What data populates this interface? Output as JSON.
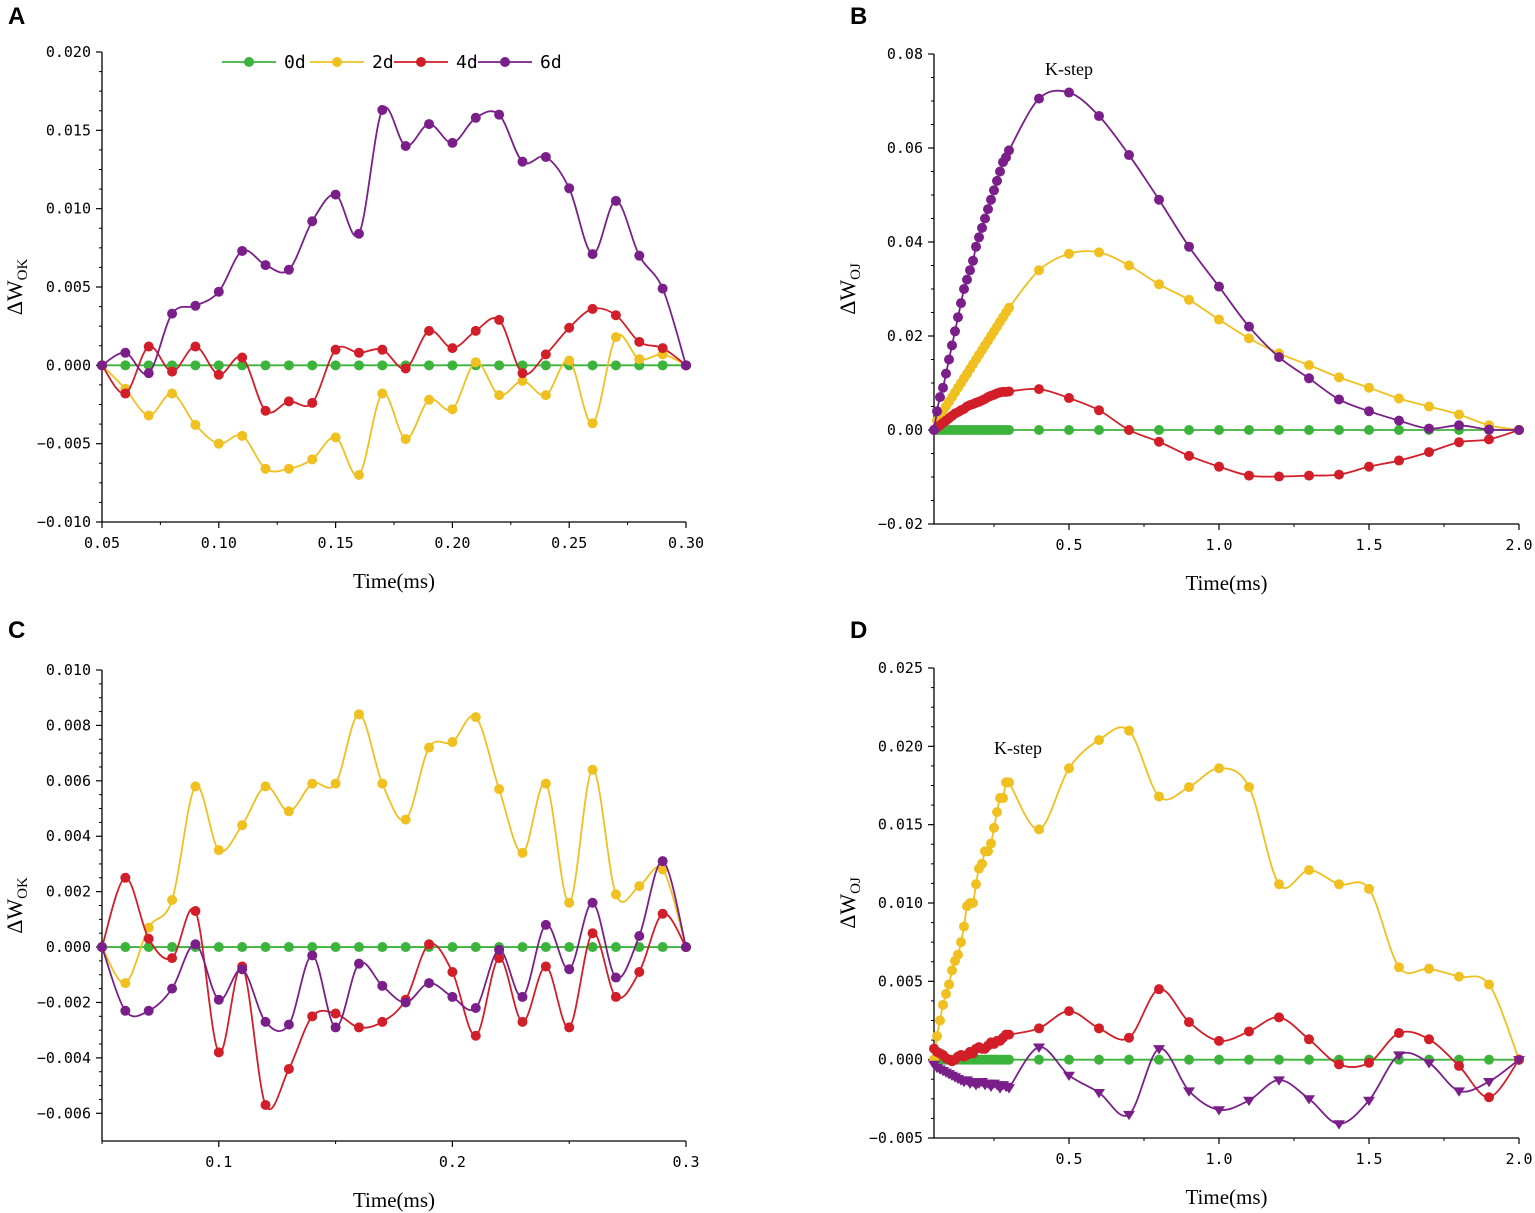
{
  "colors": {
    "d0": "#3cb43c",
    "d2": "#f0c020",
    "d4": "#d21e28",
    "d6": "#7a1f8a"
  },
  "legend": {
    "d0": "0d",
    "d2": "2d",
    "d4": "4d",
    "d6": "6d"
  },
  "chart_data": [
    {
      "panel": "A",
      "type": "line",
      "xlabel": "Time(ms)",
      "ylabel_main": "ΔW",
      "ylabel_sub": "OK",
      "xlim": [
        0.05,
        0.3
      ],
      "ylim": [
        -0.01,
        0.02
      ],
      "xticks": [
        {
          "v": 0.05,
          "label": "0.05"
        },
        {
          "v": 0.1,
          "label": "0.10"
        },
        {
          "v": 0.15,
          "label": "0.15"
        },
        {
          "v": 0.2,
          "label": "0.20"
        },
        {
          "v": 0.25,
          "label": "0.25"
        },
        {
          "v": 0.3,
          "label": "0.30"
        }
      ],
      "yticks": [
        {
          "v": -0.01,
          "label": "−0.010"
        },
        {
          "v": -0.005,
          "label": "−0.005"
        },
        {
          "v": 0.0,
          "label": "0.000"
        },
        {
          "v": 0.005,
          "label": "0.005"
        },
        {
          "v": 0.01,
          "label": "0.010"
        },
        {
          "v": 0.015,
          "label": "0.015"
        },
        {
          "v": 0.02,
          "label": "0.020"
        }
      ],
      "x": [
        0.05,
        0.06,
        0.07,
        0.08,
        0.09,
        0.1,
        0.11,
        0.12,
        0.13,
        0.14,
        0.15,
        0.16,
        0.17,
        0.18,
        0.19,
        0.2,
        0.21,
        0.22,
        0.23,
        0.24,
        0.25,
        0.26,
        0.27,
        0.28,
        0.29,
        0.3
      ],
      "series": [
        {
          "name": "0d",
          "key": "d0",
          "marker": "circle",
          "values": [
            0,
            0,
            0,
            0,
            0,
            0,
            0,
            0,
            0,
            0,
            0,
            0,
            0,
            0,
            0,
            0,
            0,
            0,
            0,
            0,
            0,
            0,
            0,
            0,
            0,
            0
          ]
        },
        {
          "name": "2d",
          "key": "d2",
          "marker": "circle",
          "values": [
            0,
            -0.0015,
            -0.0032,
            -0.0018,
            -0.0038,
            -0.005,
            -0.0045,
            -0.0066,
            -0.0066,
            -0.006,
            -0.0046,
            -0.007,
            -0.0018,
            -0.0047,
            -0.0022,
            -0.0028,
            0.0002,
            -0.0019,
            -0.001,
            -0.0019,
            0.0003,
            -0.0037,
            0.0018,
            0.0004,
            0.0007,
            0
          ]
        },
        {
          "name": "4d",
          "key": "d4",
          "marker": "circle",
          "values": [
            0,
            -0.0018,
            0.0012,
            -0.0004,
            0.0012,
            -0.0006,
            0.0005,
            -0.0029,
            -0.0023,
            -0.0024,
            0.001,
            0.0008,
            0.001,
            -0.0002,
            0.0022,
            0.0011,
            0.0022,
            0.0029,
            -0.0005,
            0.0007,
            0.0024,
            0.0036,
            0.0032,
            0.0015,
            0.0011,
            0
          ]
        },
        {
          "name": "6d",
          "key": "d6",
          "marker": "circle",
          "values": [
            0,
            0.0008,
            -0.0005,
            0.0033,
            0.0038,
            0.0047,
            0.0073,
            0.0064,
            0.0061,
            0.0092,
            0.0109,
            0.0084,
            0.0163,
            0.014,
            0.0154,
            0.0142,
            0.0158,
            0.016,
            0.013,
            0.0133,
            0.0113,
            0.0071,
            0.0105,
            0.007,
            0.0049,
            0
          ]
        }
      ]
    },
    {
      "panel": "B",
      "type": "line",
      "xlabel": "Time(ms)",
      "ylabel_main": "ΔW",
      "ylabel_sub": "OJ",
      "xlim": [
        0.05,
        2.0
      ],
      "ylim": [
        -0.02,
        0.08
      ],
      "annotation": {
        "text": "K-step",
        "x": 0.5,
        "y": 0.0755
      },
      "xticks": [
        {
          "v": 0.5,
          "label": "0.5"
        },
        {
          "v": 1.0,
          "label": "1.0"
        },
        {
          "v": 1.5,
          "label": "1.5"
        },
        {
          "v": 2.0,
          "label": "2.0"
        }
      ],
      "yticks": [
        {
          "v": -0.02,
          "label": "−0.02"
        },
        {
          "v": 0.0,
          "label": "0.00"
        },
        {
          "v": 0.02,
          "label": "0.02"
        },
        {
          "v": 0.04,
          "label": "0.04"
        },
        {
          "v": 0.06,
          "label": "0.06"
        },
        {
          "v": 0.08,
          "label": "0.08"
        }
      ],
      "x": [
        0.05,
        0.06,
        0.07,
        0.08,
        0.09,
        0.1,
        0.11,
        0.12,
        0.13,
        0.14,
        0.15,
        0.16,
        0.17,
        0.18,
        0.19,
        0.2,
        0.21,
        0.22,
        0.23,
        0.24,
        0.25,
        0.26,
        0.27,
        0.28,
        0.29,
        0.3,
        0.4,
        0.5,
        0.6,
        0.7,
        0.8,
        0.9,
        1.0,
        1.1,
        1.2,
        1.3,
        1.4,
        1.5,
        1.6,
        1.7,
        1.8,
        1.9,
        2.0
      ],
      "series": [
        {
          "name": "0d",
          "key": "d0",
          "marker": "circle",
          "values": [
            0,
            0,
            0,
            0,
            0,
            0,
            0,
            0,
            0,
            0,
            0,
            0,
            0,
            0,
            0,
            0,
            0,
            0,
            0,
            0,
            0,
            0,
            0,
            0,
            0,
            0,
            0,
            0,
            0,
            0,
            0,
            0,
            0,
            0,
            0,
            0,
            0,
            0,
            0,
            0,
            0,
            0,
            0
          ]
        },
        {
          "name": "2d",
          "key": "d2",
          "marker": "circle",
          "values": [
            0,
            0.002,
            0.003,
            0.004,
            0.005,
            0.006,
            0.007,
            0.008,
            0.009,
            0.01,
            0.011,
            0.012,
            0.013,
            0.014,
            0.015,
            0.016,
            0.017,
            0.018,
            0.019,
            0.02,
            0.021,
            0.022,
            0.023,
            0.024,
            0.025,
            0.026,
            0.034,
            0.0375,
            0.0378,
            0.035,
            0.031,
            0.0277,
            0.0235,
            0.0195,
            0.0163,
            0.0138,
            0.0112,
            0.009,
            0.0067,
            0.005,
            0.0033,
            0.001,
            0
          ]
        },
        {
          "name": "4d",
          "key": "d4",
          "marker": "circle",
          "values": [
            0,
            0.0005,
            0.001,
            0.0015,
            0.002,
            0.0025,
            0.003,
            0.0035,
            0.0038,
            0.0042,
            0.0045,
            0.005,
            0.0053,
            0.0055,
            0.0058,
            0.006,
            0.0063,
            0.0066,
            0.007,
            0.0073,
            0.0075,
            0.0078,
            0.008,
            0.0081,
            0.0081,
            0.0082,
            0.0087,
            0.0068,
            0.0042,
            0,
            -0.0025,
            -0.0055,
            -0.0078,
            -0.0097,
            -0.0099,
            -0.0097,
            -0.0095,
            -0.0078,
            -0.0065,
            -0.0047,
            -0.0026,
            -0.002,
            0
          ]
        },
        {
          "name": "6d",
          "key": "d6",
          "marker": "circle",
          "values": [
            0,
            0.004,
            0.007,
            0.009,
            0.012,
            0.015,
            0.018,
            0.021,
            0.024,
            0.027,
            0.03,
            0.032,
            0.034,
            0.036,
            0.039,
            0.041,
            0.043,
            0.045,
            0.047,
            0.049,
            0.051,
            0.053,
            0.055,
            0.057,
            0.058,
            0.0595,
            0.0705,
            0.0718,
            0.0668,
            0.0585,
            0.049,
            0.039,
            0.0305,
            0.022,
            0.0155,
            0.011,
            0.0065,
            0.004,
            0.002,
            0.0003,
            0.001,
            0.0001,
            0
          ]
        }
      ]
    },
    {
      "panel": "C",
      "type": "line",
      "xlabel": "Time(ms)",
      "ylabel_main": "ΔW",
      "ylabel_sub": "OK",
      "xlim": [
        0.05,
        0.3
      ],
      "ylim": [
        -0.007,
        0.01
      ],
      "xticks": [
        {
          "v": 0.1,
          "label": "0.1"
        },
        {
          "v": 0.2,
          "label": "0.2"
        },
        {
          "v": 0.3,
          "label": "0.3"
        }
      ],
      "yticks": [
        {
          "v": -0.006,
          "label": "−0.006"
        },
        {
          "v": -0.004,
          "label": "−0.004"
        },
        {
          "v": -0.002,
          "label": "−0.002"
        },
        {
          "v": 0.0,
          "label": "0.000"
        },
        {
          "v": 0.002,
          "label": "0.002"
        },
        {
          "v": 0.004,
          "label": "0.004"
        },
        {
          "v": 0.006,
          "label": "0.006"
        },
        {
          "v": 0.008,
          "label": "0.008"
        },
        {
          "v": 0.01,
          "label": "0.010"
        }
      ],
      "x": [
        0.05,
        0.06,
        0.07,
        0.08,
        0.09,
        0.1,
        0.11,
        0.12,
        0.13,
        0.14,
        0.15,
        0.16,
        0.17,
        0.18,
        0.19,
        0.2,
        0.21,
        0.22,
        0.23,
        0.24,
        0.25,
        0.26,
        0.27,
        0.28,
        0.29,
        0.3
      ],
      "series": [
        {
          "name": "0d",
          "key": "d0",
          "marker": "circle",
          "values": [
            0,
            0,
            0,
            0,
            0,
            0,
            0,
            0,
            0,
            0,
            0,
            0,
            0,
            0,
            0,
            0,
            0,
            0,
            0,
            0,
            0,
            0,
            0,
            0,
            0,
            0
          ]
        },
        {
          "name": "2d",
          "key": "d2",
          "marker": "circle",
          "values": [
            0,
            -0.0013,
            0.0007,
            0.0017,
            0.0058,
            0.0035,
            0.0044,
            0.0058,
            0.0049,
            0.0059,
            0.0059,
            0.0084,
            0.0059,
            0.0046,
            0.0072,
            0.0074,
            0.0083,
            0.0057,
            0.0034,
            0.0059,
            0.0016,
            0.0064,
            0.0019,
            0.0022,
            0.0028,
            0
          ]
        },
        {
          "name": "4d",
          "key": "d4",
          "marker": "circle",
          "values": [
            0,
            0.0025,
            0.0003,
            -0.0004,
            0.0013,
            -0.0038,
            -0.0007,
            -0.0057,
            -0.0044,
            -0.0025,
            -0.0024,
            -0.0029,
            -0.0027,
            -0.0019,
            0.0001,
            -0.0009,
            -0.0032,
            -0.0004,
            -0.0027,
            -0.0007,
            -0.0029,
            0.0005,
            -0.0018,
            -0.0009,
            0.0012,
            0
          ]
        },
        {
          "name": "6d",
          "key": "d6",
          "marker": "circle",
          "values": [
            0,
            -0.0023,
            -0.0023,
            -0.0015,
            0.0001,
            -0.0019,
            -0.0008,
            -0.0027,
            -0.0028,
            -0.0003,
            -0.0029,
            -0.0006,
            -0.0014,
            -0.002,
            -0.0013,
            -0.0018,
            -0.0022,
            -0.0001,
            -0.0018,
            0.0008,
            -0.0008,
            0.0016,
            -0.0011,
            0.0004,
            0.0031,
            0
          ]
        }
      ]
    },
    {
      "panel": "D",
      "type": "line",
      "xlabel": "Time(ms)",
      "ylabel_main": "ΔW",
      "ylabel_sub": "OJ",
      "xlim": [
        0.05,
        2.0
      ],
      "ylim": [
        -0.005,
        0.025
      ],
      "annotation": {
        "text": "K-step",
        "x": 0.33,
        "y": 0.0195
      },
      "xticks": [
        {
          "v": 0.5,
          "label": "0.5"
        },
        {
          "v": 1.0,
          "label": "1.0"
        },
        {
          "v": 1.5,
          "label": "1.5"
        },
        {
          "v": 2.0,
          "label": "2.0"
        }
      ],
      "yticks": [
        {
          "v": -0.005,
          "label": "−0.005"
        },
        {
          "v": 0.0,
          "label": "0.000"
        },
        {
          "v": 0.005,
          "label": "0.005"
        },
        {
          "v": 0.01,
          "label": "0.010"
        },
        {
          "v": 0.015,
          "label": "0.015"
        },
        {
          "v": 0.02,
          "label": "0.020"
        },
        {
          "v": 0.025,
          "label": "0.025"
        }
      ],
      "x": [
        0.05,
        0.06,
        0.07,
        0.08,
        0.09,
        0.1,
        0.11,
        0.12,
        0.13,
        0.14,
        0.15,
        0.16,
        0.17,
        0.18,
        0.19,
        0.2,
        0.21,
        0.22,
        0.23,
        0.24,
        0.25,
        0.26,
        0.27,
        0.28,
        0.29,
        0.3,
        0.4,
        0.5,
        0.6,
        0.7,
        0.8,
        0.9,
        1.0,
        1.1,
        1.2,
        1.3,
        1.4,
        1.5,
        1.6,
        1.7,
        1.8,
        1.9,
        2.0
      ],
      "series": [
        {
          "name": "0d",
          "key": "d0",
          "marker": "circle",
          "values": [
            0,
            0,
            0,
            0,
            0,
            0,
            0,
            0,
            0,
            0,
            0,
            0,
            0,
            0,
            0,
            0,
            0,
            0,
            0,
            0,
            0,
            0,
            0,
            0,
            0,
            0,
            0,
            0,
            0,
            0,
            0,
            0,
            0,
            0,
            0,
            0,
            0,
            0,
            0,
            0,
            0,
            0,
            0
          ]
        },
        {
          "name": "2d",
          "key": "d2",
          "marker": "circle",
          "values": [
            0,
            0.0015,
            0.0025,
            0.0035,
            0.0042,
            0.0048,
            0.0057,
            0.0063,
            0.0067,
            0.0075,
            0.0085,
            0.0098,
            0.01,
            0.01,
            0.0112,
            0.0122,
            0.0125,
            0.0133,
            0.0133,
            0.0138,
            0.0148,
            0.0158,
            0.0167,
            0.0167,
            0.0177,
            0.0177,
            0.0147,
            0.0186,
            0.0204,
            0.021,
            0.0168,
            0.0174,
            0.0186,
            0.0174,
            0.0112,
            0.0121,
            0.0112,
            0.0109,
            0.0059,
            0.0058,
            0.0053,
            0.0048,
            0
          ]
        },
        {
          "name": "4d",
          "key": "d4",
          "marker": "circle",
          "values": [
            0.0007,
            0.0005,
            0.0004,
            0.0003,
            0.0001,
            0,
            -0.0001,
            0,
            0.0002,
            0.0003,
            0.0002,
            0.0003,
            0.0005,
            0.0004,
            0.0007,
            0.0008,
            0.0007,
            0.0007,
            0.0009,
            0.0011,
            0.001,
            0.0012,
            0.0012,
            0.0014,
            0.0016,
            0.0016,
            0.002,
            0.0031,
            0.002,
            0.0014,
            0.0045,
            0.0024,
            0.0012,
            0.0018,
            0.0027,
            0.0013,
            -0.0003,
            -0.0002,
            0.0017,
            0.0013,
            -0.0004,
            -0.0024,
            0
          ]
        },
        {
          "name": "6d",
          "key": "d6",
          "marker": "triangle",
          "values": [
            -0.0003,
            -0.0005,
            -0.0006,
            -0.0007,
            -0.0008,
            -0.0009,
            -0.001,
            -0.0011,
            -0.0012,
            -0.0013,
            -0.0014,
            -0.0013,
            -0.0015,
            -0.0014,
            -0.0016,
            -0.0015,
            -0.0014,
            -0.0016,
            -0.0015,
            -0.0017,
            -0.0015,
            -0.0016,
            -0.0018,
            -0.0016,
            -0.0017,
            -0.0018,
            0.0008,
            -0.001,
            -0.0021,
            -0.0035,
            0.0007,
            -0.002,
            -0.0032,
            -0.0026,
            -0.0013,
            -0.0025,
            -0.0041,
            -0.0026,
            0.0003,
            -0.0002,
            -0.002,
            -0.0014,
            0
          ]
        }
      ]
    }
  ]
}
